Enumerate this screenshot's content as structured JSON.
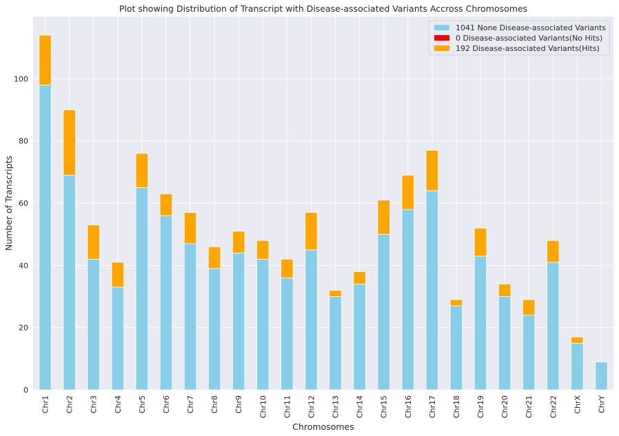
{
  "chart_data": {
    "type": "bar",
    "stacked": true,
    "title": "Plot showing Distribution of Transcript with Disease-associated Variants Accross Chromosomes",
    "xlabel": "Chromosomes",
    "ylabel": "Number of Transcripts",
    "ylim": [
      0,
      120
    ],
    "yticks": [
      0,
      20,
      40,
      60,
      80,
      100
    ],
    "grid": true,
    "legend_position": "top-right",
    "categories": [
      "Chr1",
      "Chr2",
      "Chr3",
      "Chr4",
      "Chr5",
      "Chr6",
      "Chr7",
      "Chr8",
      "Chr9",
      "Chr10",
      "Chr11",
      "Chr12",
      "Chr13",
      "Chr14",
      "Chr15",
      "Chr16",
      "Chr17",
      "Chr18",
      "Chr19",
      "Chr20",
      "Chr21",
      "Chr22",
      "ChrX",
      "ChrY"
    ],
    "series": [
      {
        "name": "1041 None Disease-associated Variants",
        "color": "#87ceeb",
        "values": [
          98,
          69,
          42,
          33,
          65,
          56,
          47,
          39,
          44,
          42,
          36,
          45,
          30,
          34,
          50,
          58,
          64,
          27,
          43,
          30,
          24,
          41,
          15,
          9
        ]
      },
      {
        "name": "0 Disease-associated Variants(No Hits)",
        "color": "#ff0000",
        "values": [
          0,
          0,
          0,
          0,
          0,
          0,
          0,
          0,
          0,
          0,
          0,
          0,
          0,
          0,
          0,
          0,
          0,
          0,
          0,
          0,
          0,
          0,
          0,
          0
        ]
      },
      {
        "name": "192 Disease-associated Variants(Hits)",
        "color": "#ffa500",
        "values": [
          16,
          21,
          11,
          8,
          11,
          7,
          10,
          7,
          7,
          6,
          6,
          12,
          2,
          4,
          11,
          11,
          13,
          2,
          9,
          4,
          5,
          7,
          2,
          0
        ]
      }
    ]
  }
}
